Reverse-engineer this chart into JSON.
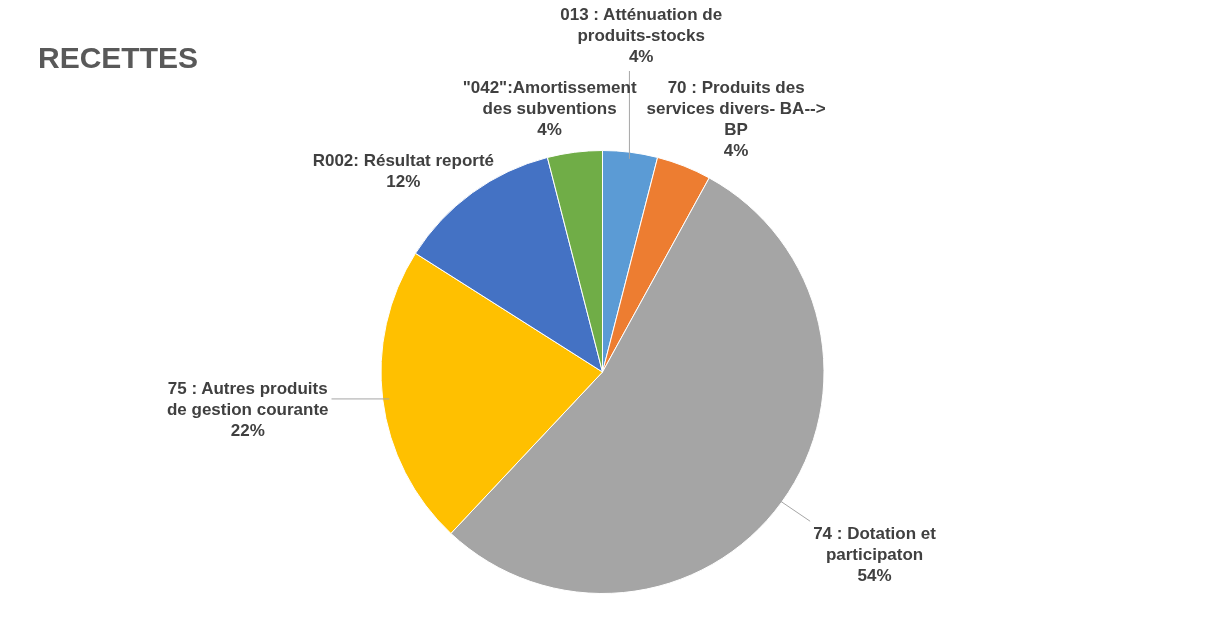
{
  "chart_data": {
    "type": "pie",
    "title": "RECETTES",
    "categories": [
      "013 : Atténuation de produits-stocks",
      "70 : Produits des services divers- BA--> BP",
      "74 : Dotation et participaton",
      "75 : Autres produits de gestion courante",
      "R002: Résultat reporté",
      "\"042\":Amortissement des subventions"
    ],
    "values": [
      4,
      4,
      54,
      22,
      12,
      4
    ],
    "value_labels": [
      "4%",
      "4%",
      "54%",
      "22%",
      "12%",
      "4%"
    ],
    "colors": [
      "#5b9bd5",
      "#ed7d31",
      "#a5a5a5",
      "#ffc000",
      "#4472c4",
      "#70ad47"
    ],
    "legend": false
  }
}
